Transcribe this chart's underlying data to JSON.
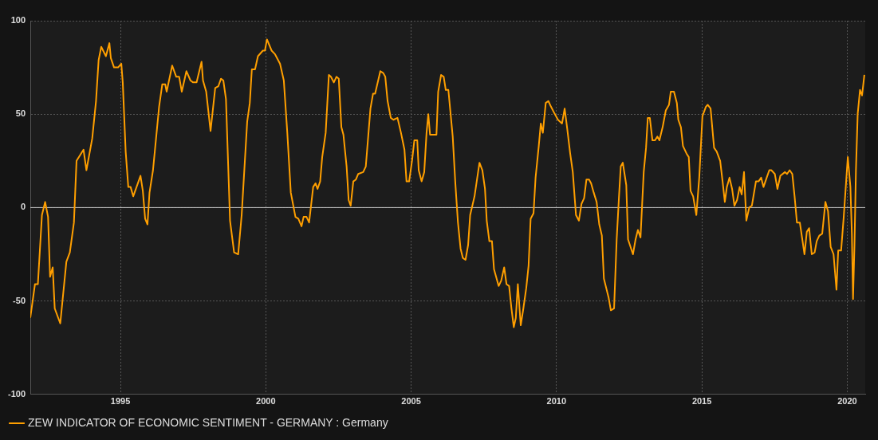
{
  "chart_data": {
    "type": "line",
    "xlim": [
      1991.9,
      2020.62
    ],
    "xticks": [
      1995,
      2000,
      2005,
      2010,
      2015,
      2020
    ],
    "ylim": [
      -100,
      100
    ],
    "yticks": [
      -100,
      -50,
      0,
      50,
      100
    ],
    "grid": true,
    "legend": "bottom left",
    "marker": "none",
    "line_style": "solid",
    "ref_lines": [
      {
        "axis": "y",
        "value": 0,
        "color": "#c8c8c8"
      }
    ],
    "series": [
      {
        "name": "ZEW INDICATOR OF ECONOMIC SENTIMENT - GERMANY : Germany",
        "color": "#ff9f00",
        "x": [
          1991.9,
          1992.06,
          1992.16,
          1992.3,
          1992.41,
          1992.51,
          1992.58,
          1992.67,
          1992.74,
          1992.93,
          1993.14,
          1993.26,
          1993.4,
          1993.49,
          1993.73,
          1993.83,
          1994.03,
          1994.16,
          1994.25,
          1994.34,
          1994.5,
          1994.62,
          1994.67,
          1994.78,
          1994.92,
          1995.03,
          1995.08,
          1995.18,
          1995.27,
          1995.35,
          1995.44,
          1995.69,
          1995.77,
          1995.85,
          1995.93,
          1996.0,
          1996.12,
          1996.33,
          1996.44,
          1996.54,
          1996.59,
          1996.78,
          1996.92,
          1997.02,
          1997.11,
          1997.27,
          1997.41,
          1997.5,
          1997.62,
          1997.79,
          1997.84,
          1997.95,
          1998.1,
          1998.26,
          1998.37,
          1998.46,
          1998.54,
          1998.63,
          1998.77,
          1998.91,
          1999.05,
          1999.17,
          1999.36,
          1999.45,
          1999.52,
          1999.63,
          1999.73,
          1999.9,
          1999.97,
          2000.04,
          2000.2,
          2000.32,
          2000.49,
          2000.62,
          2000.74,
          2000.86,
          2001.02,
          2001.12,
          2001.23,
          2001.3,
          2001.4,
          2001.49,
          2001.63,
          2001.71,
          2001.78,
          2001.87,
          2001.94,
          2002.06,
          2002.17,
          2002.24,
          2002.34,
          2002.43,
          2002.51,
          2002.6,
          2002.67,
          2002.78,
          2002.85,
          2002.92,
          2003.01,
          2003.1,
          2003.18,
          2003.35,
          2003.44,
          2003.6,
          2003.69,
          2003.76,
          2003.94,
          2004.04,
          2004.11,
          2004.19,
          2004.3,
          2004.39,
          2004.53,
          2004.65,
          2004.77,
          2004.84,
          2004.93,
          2005.03,
          2005.11,
          2005.21,
          2005.26,
          2005.36,
          2005.45,
          2005.53,
          2005.59,
          2005.65,
          2005.78,
          2005.87,
          2005.93,
          2006.03,
          2006.12,
          2006.19,
          2006.28,
          2006.43,
          2006.52,
          2006.61,
          2006.7,
          2006.78,
          2006.87,
          2006.96,
          2007.03,
          2007.18,
          2007.35,
          2007.45,
          2007.54,
          2007.6,
          2007.69,
          2007.78,
          2007.85,
          2008.01,
          2008.1,
          2008.2,
          2008.28,
          2008.37,
          2008.45,
          2008.53,
          2008.6,
          2008.67,
          2008.77,
          2008.86,
          2008.96,
          2009.04,
          2009.11,
          2009.21,
          2009.28,
          2009.39,
          2009.46,
          2009.53,
          2009.63,
          2009.72,
          2009.81,
          2009.91,
          2010.05,
          2010.19,
          2010.28,
          2010.37,
          2010.47,
          2010.56,
          2010.67,
          2010.77,
          2010.86,
          2010.95,
          2011.03,
          2011.12,
          2011.19,
          2011.28,
          2011.38,
          2011.47,
          2011.56,
          2011.63,
          2011.79,
          2011.87,
          2011.98,
          2012.07,
          2012.15,
          2012.21,
          2012.28,
          2012.4,
          2012.46,
          2012.63,
          2012.72,
          2012.8,
          2012.89,
          2013.0,
          2013.08,
          2013.14,
          2013.21,
          2013.3,
          2013.39,
          2013.47,
          2013.54,
          2013.65,
          2013.76,
          2013.87,
          2013.93,
          2014.04,
          2014.14,
          2014.19,
          2014.28,
          2014.35,
          2014.47,
          2014.55,
          2014.61,
          2014.7,
          2014.81,
          2014.91,
          2015.02,
          2015.14,
          2015.2,
          2015.3,
          2015.42,
          2015.51,
          2015.63,
          2015.72,
          2015.79,
          2015.86,
          2015.95,
          2016.04,
          2016.12,
          2016.21,
          2016.3,
          2016.37,
          2016.45,
          2016.53,
          2016.63,
          2016.72,
          2016.86,
          2016.95,
          2017.04,
          2017.12,
          2017.23,
          2017.32,
          2017.39,
          2017.51,
          2017.6,
          2017.7,
          2017.86,
          2017.93,
          2018.02,
          2018.11,
          2018.19,
          2018.27,
          2018.37,
          2018.53,
          2018.61,
          2018.69,
          2018.78,
          2018.88,
          2018.95,
          2019.04,
          2019.14,
          2019.25,
          2019.34,
          2019.43,
          2019.53,
          2019.63,
          2019.69,
          2019.79,
          2019.88,
          2020.02,
          2020.11,
          2020.16,
          2020.2,
          2020.25,
          2020.3,
          2020.36,
          2020.44,
          2020.51,
          2020.59
        ],
        "values": [
          -59,
          -41,
          -41,
          -4,
          3,
          -5,
          -37,
          -32,
          -54,
          -62,
          -29,
          -24,
          -8,
          25,
          31,
          20,
          37,
          57,
          79,
          86,
          81,
          88,
          80,
          75,
          75,
          77,
          67,
          30,
          11,
          11,
          6,
          17,
          9,
          -6,
          -9,
          8,
          20,
          54,
          66,
          66,
          62,
          76,
          70,
          70,
          62,
          73,
          68,
          67,
          67,
          78,
          68,
          62,
          41,
          64,
          65,
          69,
          68,
          58,
          -7,
          -24,
          -25,
          -4,
          46,
          56,
          74,
          74,
          81,
          84,
          84,
          90,
          84,
          82,
          77,
          68,
          40,
          8,
          -5,
          -6,
          -10,
          -5,
          -5,
          -8,
          11,
          13,
          10,
          14,
          27,
          40,
          71,
          70,
          67,
          70,
          69,
          43,
          39,
          22,
          4,
          1,
          14,
          15,
          18,
          19,
          22,
          53,
          61,
          61,
          73,
          72,
          70,
          57,
          48,
          47,
          48,
          40,
          31,
          14,
          14,
          25,
          36,
          36,
          20,
          14,
          19,
          40,
          50,
          39,
          39,
          39,
          62,
          71,
          70,
          63,
          63,
          38,
          13,
          -8,
          -22,
          -27,
          -28,
          -20,
          -4,
          6,
          24,
          20,
          10,
          -7,
          -18,
          -18,
          -33,
          -42,
          -39,
          -32,
          -41,
          -42,
          -54,
          -64,
          -59,
          -41,
          -63,
          -54,
          -43,
          -31,
          -6,
          -3,
          16,
          33,
          45,
          40,
          56,
          57,
          54,
          51,
          47,
          45,
          53,
          42,
          29,
          19,
          -4,
          -7,
          2,
          5,
          15,
          15,
          13,
          8,
          3,
          -9,
          -15,
          -38,
          -48,
          -55,
          -54,
          -17,
          6,
          22,
          24,
          12,
          -17,
          -25,
          -17,
          -12,
          -16,
          19,
          32,
          48,
          48,
          36,
          36,
          38,
          36,
          43,
          52,
          55,
          62,
          62,
          56,
          47,
          43,
          33,
          29,
          27,
          9,
          6,
          -4,
          16,
          49,
          54,
          55,
          53,
          32,
          30,
          25,
          13,
          3,
          11,
          16,
          10,
          1,
          4,
          11,
          7,
          19,
          -7,
          0,
          1,
          14,
          14,
          16,
          11,
          16,
          20,
          20,
          18,
          10,
          17,
          19,
          18,
          20,
          18,
          6,
          -8,
          -8,
          -25,
          -13,
          -11,
          -25,
          -24,
          -18,
          -15,
          -14,
          3,
          -2,
          -21,
          -25,
          -44,
          -23,
          -23,
          -5,
          27,
          11,
          -14,
          -49,
          -20,
          20,
          50,
          63,
          60,
          71
        ]
      }
    ]
  }
}
